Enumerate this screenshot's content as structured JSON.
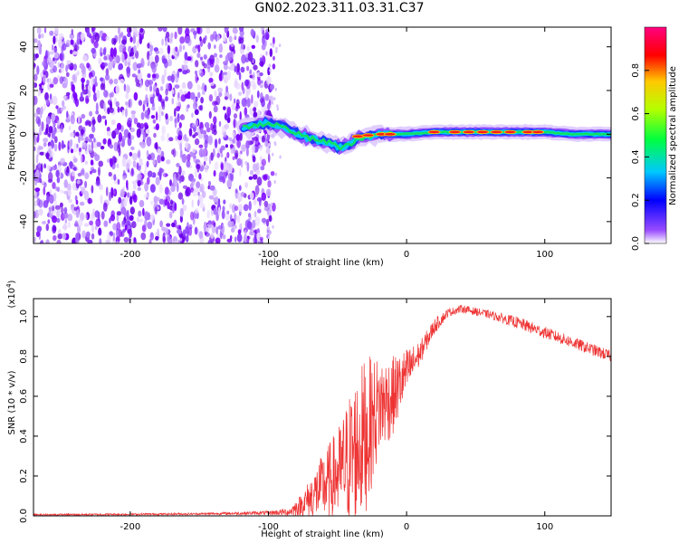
{
  "title": "GN02.2023.311.03.31.C37",
  "chart_data": [
    {
      "type": "heatmap",
      "xlabel": "Height of straight line (km)",
      "ylabel": "Frequency (Hz)",
      "xlim": [
        -270,
        148
      ],
      "ylim": [
        -50,
        49
      ],
      "xticks": [
        -200,
        -100,
        0,
        100
      ],
      "yticks": [
        -40,
        -20,
        0,
        20,
        40
      ],
      "noise_region_x": [
        -270,
        -100
      ],
      "ridge": {
        "x": [
          -118,
          -110,
          -100,
          -92,
          -85,
          -78,
          -70,
          -62,
          -55,
          -48,
          -42,
          -35,
          -28,
          -20,
          -12,
          0,
          20,
          40,
          60,
          80,
          100,
          120,
          148
        ],
        "y": [
          3,
          4,
          5,
          4,
          2,
          0,
          -2,
          -3,
          -4,
          -6,
          -5,
          -2,
          -1,
          0,
          0,
          0,
          1,
          1,
          1,
          1,
          1,
          0,
          0
        ]
      },
      "grid": false,
      "colorbar": {
        "label": "Normalized spectral amplitude",
        "range": [
          0,
          1
        ],
        "ticks": [
          0.0,
          0.2,
          0.4,
          0.6,
          0.8
        ],
        "colormap": [
          "#ffffff",
          "#7a00ff",
          "#0000ff",
          "#00c8ff",
          "#00ff40",
          "#b4ff00",
          "#ffc800",
          "#ff0000",
          "#ff0080"
        ]
      }
    },
    {
      "type": "line",
      "xlabel": "Height of straight line (km)",
      "ylabel": "SNR (10 * v/v)",
      "yscale_label": "(x10",
      "yscale_exp": "4",
      "yscale_close": ")",
      "xlim": [
        -270,
        148
      ],
      "ylim": [
        0,
        1.09
      ],
      "xticks": [
        -200,
        -100,
        0,
        100
      ],
      "yticks": [
        0.0,
        0.2,
        0.4,
        0.6,
        0.8,
        1.0
      ],
      "series_color": "#ee3333",
      "envelope": {
        "x": [
          -270,
          -150,
          -100,
          -85,
          -75,
          -65,
          -55,
          -48,
          -40,
          -30,
          -20,
          -10,
          0,
          10,
          20,
          30,
          40,
          60,
          80,
          100,
          120,
          148
        ],
        "mean": [
          0.005,
          0.01,
          0.015,
          0.02,
          0.06,
          0.12,
          0.18,
          0.22,
          0.3,
          0.4,
          0.55,
          0.6,
          0.72,
          0.82,
          0.95,
          1.02,
          1.04,
          1.01,
          0.97,
          0.92,
          0.87,
          0.8
        ],
        "spread": [
          0.005,
          0.005,
          0.01,
          0.02,
          0.06,
          0.14,
          0.2,
          0.25,
          0.35,
          0.4,
          0.25,
          0.2,
          0.12,
          0.06,
          0.04,
          0.02,
          0.02,
          0.02,
          0.03,
          0.03,
          0.03,
          0.03
        ]
      }
    }
  ]
}
